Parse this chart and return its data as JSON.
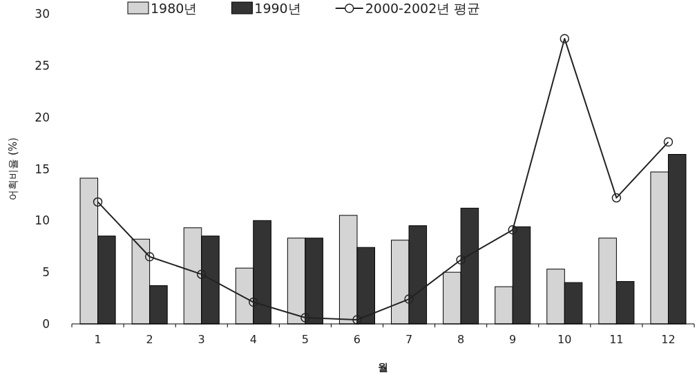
{
  "chart_data": {
    "type": "bar",
    "xlabel": "월",
    "ylabel": "어획비율 (%)",
    "categories": [
      "1",
      "2",
      "3",
      "4",
      "5",
      "6",
      "7",
      "8",
      "9",
      "10",
      "11",
      "12"
    ],
    "ylim": [
      0,
      30
    ],
    "yticks": [
      0,
      5,
      10,
      15,
      20,
      25,
      30
    ],
    "grid": false,
    "legend": "top",
    "marker": "circle",
    "line_style": "solid",
    "series": [
      {
        "name": "1980년",
        "color": "#d4d4d4",
        "values": [
          14.1,
          8.2,
          9.3,
          5.4,
          8.3,
          10.5,
          8.1,
          5.0,
          3.6,
          5.3,
          8.3,
          14.7
        ]
      },
      {
        "name": "1990년",
        "color": "#333333",
        "values": [
          8.5,
          3.7,
          8.5,
          10.0,
          8.3,
          7.4,
          9.5,
          11.2,
          9.4,
          4.0,
          4.1,
          16.4
        ]
      },
      {
        "name": "2000-2002년 평균",
        "type": "line",
        "color": "#222222",
        "values": [
          11.8,
          6.5,
          4.8,
          2.1,
          0.6,
          0.4,
          2.4,
          6.2,
          9.1,
          27.6,
          12.2,
          17.6
        ]
      }
    ]
  }
}
